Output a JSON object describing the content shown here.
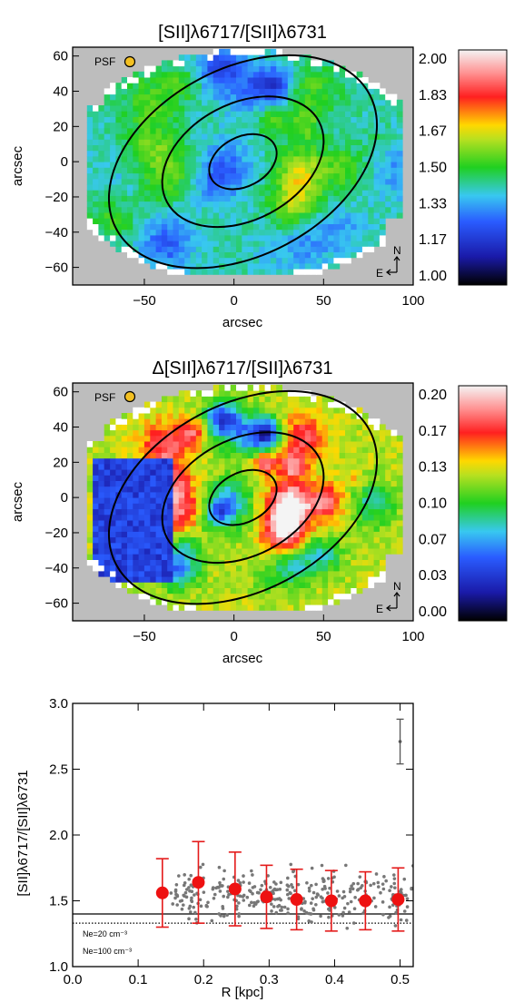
{
  "chart_data": [
    {
      "type": "heatmap",
      "title": "[SII]λ6717/[SII]λ6731",
      "xlabel": "arcsec",
      "ylabel": "arcsec",
      "xlim": [
        -90,
        100
      ],
      "ylim": [
        -70,
        65
      ],
      "x_ticks": [
        -50,
        0,
        50,
        100
      ],
      "y_ticks": [
        -60,
        -40,
        -20,
        0,
        20,
        40,
        60
      ],
      "colorbar": {
        "range": [
          1.0,
          2.0
        ],
        "tick_labels": [
          "2.00",
          "1.83",
          "1.67",
          "1.50",
          "1.33",
          "1.17",
          "1.00"
        ]
      },
      "psf_label": "PSF",
      "compass": {
        "north": "N",
        "east": "E"
      }
    },
    {
      "type": "heatmap",
      "title": "Δ[SII]λ6717/[SII]λ6731",
      "xlabel": "arcsec",
      "ylabel": "arcsec",
      "xlim": [
        -90,
        100
      ],
      "ylim": [
        -70,
        65
      ],
      "x_ticks": [
        -50,
        0,
        50,
        100
      ],
      "y_ticks": [
        -60,
        -40,
        -20,
        0,
        20,
        40,
        60
      ],
      "colorbar": {
        "range": [
          0.0,
          0.2
        ],
        "tick_labels": [
          "0.20",
          "0.17",
          "0.13",
          "0.10",
          "0.07",
          "0.03",
          "0.00"
        ]
      },
      "psf_label": "PSF",
      "compass": {
        "north": "N",
        "east": "E"
      }
    },
    {
      "type": "scatter",
      "title": "",
      "xlabel": "R [kpc]",
      "ylabel": "[SII]λ6717/[SII]λ6731",
      "xlim": [
        0.0,
        0.52
      ],
      "ylim": [
        1.0,
        3.0
      ],
      "x_ticks": [
        "0.0",
        "0.1",
        "0.2",
        "0.3",
        "0.4",
        "0.5"
      ],
      "y_ticks": [
        "1.0",
        "1.5",
        "2.0",
        "2.5",
        "3.0"
      ],
      "binned_means": {
        "x": [
          0.137,
          0.192,
          0.248,
          0.296,
          0.342,
          0.395,
          0.447,
          0.497
        ],
        "y": [
          1.56,
          1.64,
          1.59,
          1.53,
          1.51,
          1.5,
          1.5,
          1.51
        ],
        "err": [
          0.26,
          0.31,
          0.28,
          0.24,
          0.23,
          0.23,
          0.22,
          0.24
        ]
      },
      "typical_error": {
        "x": 0.5,
        "y": 2.71,
        "err": 0.17
      },
      "reference_lines": [
        {
          "label": "Ne=20 cm⁻³",
          "y": 1.4,
          "style": "solid"
        },
        {
          "label": "Ne=100 cm⁻³",
          "y": 1.33,
          "style": "dotted"
        }
      ]
    }
  ]
}
